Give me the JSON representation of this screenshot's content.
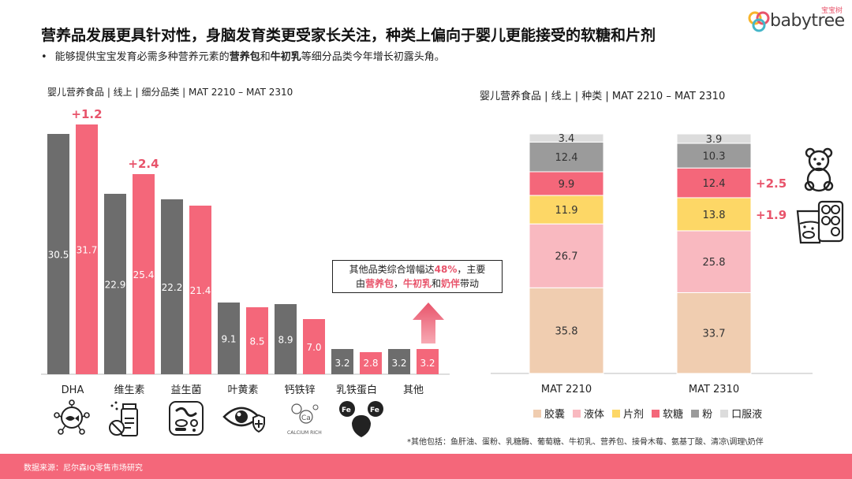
{
  "header": {
    "title": "营养品发展更具针对性，身脑发育类更受家长关注，种类上偏向于婴儿更能接受的软糖和片剂",
    "subtitle_bullet": "•",
    "subtitle_pre": "能够提供宝宝发育必需多种营养元素的",
    "subtitle_b1": "营养包",
    "subtitle_mid": "和",
    "subtitle_b2": "牛初乳",
    "subtitle_post": "等细分品类今年增长初露头角。"
  },
  "logo": {
    "text": "babytree",
    "cn": "宝宝树"
  },
  "callout": {
    "line1_pre": "其他品类综合增幅达",
    "line1_hl": "48%",
    "line1_post": "，主要",
    "line2_pre": "由",
    "line2_hl1": "营养包",
    "line2_sep1": "，",
    "line2_hl2": "牛初乳",
    "line2_sep2": "和",
    "line2_hl3": "奶伴",
    "line2_post": "带动"
  },
  "icons": {
    "cat_icons": [
      "dha-molecule-icon",
      "vitamin-bottle-icon",
      "probiotic-bacteria-icon",
      "eye-protection-icon",
      "calcium-iron-zinc-icon",
      "lactoferrin-icon"
    ],
    "calcium_text": "CALCIUM RICH",
    "fe_text": "Fe",
    "gummy": "gummy-bear-icon",
    "tablet": "tablet-cup-icon"
  },
  "footnote": "*其他包括：鱼肝油、蛋粉、乳糖酶、葡萄糖、牛初乳、营养包、接骨木莓、氨基丁酸、清凉\\调理\\奶伴",
  "footer": {
    "source": "数据来源：尼尔森IQ零售市场研究"
  },
  "colors": {
    "grey_bar": "#6d6d6d",
    "red_bar": "#f4677a",
    "accent_red": "#e8546b",
    "footer": "#f4677a"
  },
  "chart_data": [
    {
      "type": "bar",
      "title": "婴儿营养食品 | 线上 | 细分品类 | MAT 2210 – MAT 2310",
      "categories": [
        "DHA",
        "维生素",
        "益生菌",
        "叶黄素",
        "钙铁锌",
        "乳铁蛋白",
        "其他"
      ],
      "series": [
        {
          "name": "MAT 2210",
          "color": "#6d6d6d",
          "values": [
            30.5,
            22.9,
            22.2,
            9.1,
            8.9,
            3.2,
            3.2
          ]
        },
        {
          "name": "MAT 2310",
          "color": "#f4677a",
          "values": [
            31.7,
            25.4,
            21.4,
            8.5,
            7.0,
            2.8,
            3.2
          ]
        }
      ],
      "annotations": [
        {
          "category": "DHA",
          "text": "+1.2"
        },
        {
          "category": "维生素",
          "text": "+2.4"
        }
      ],
      "ylim": [
        0,
        33
      ]
    },
    {
      "type": "bar",
      "stacked": true,
      "title": "婴儿营养食品 | 线上 | 种类 | MAT 2210 – MAT 2310",
      "categories": [
        "MAT 2210",
        "MAT 2310"
      ],
      "series": [
        {
          "name": "胶囊",
          "color": "#f0cdb0",
          "values": [
            35.8,
            33.7
          ]
        },
        {
          "name": "液体",
          "color": "#f9b9c0",
          "values": [
            26.7,
            25.8
          ]
        },
        {
          "name": "片剂",
          "color": "#fdd766",
          "values": [
            11.9,
            13.8
          ]
        },
        {
          "name": "软糖",
          "color": "#f4677a",
          "values": [
            9.9,
            12.4
          ]
        },
        {
          "name": "粉",
          "color": "#9b9b9b",
          "values": [
            12.4,
            10.3
          ]
        },
        {
          "name": "口服液",
          "color": "#dcdcdc",
          "values": [
            3.4,
            3.9
          ]
        }
      ],
      "annotations": [
        {
          "series": "软糖",
          "text": "+2.5"
        },
        {
          "series": "片剂",
          "text": "+1.9"
        }
      ],
      "legend": "bottom",
      "ylim": [
        0,
        100
      ]
    }
  ]
}
